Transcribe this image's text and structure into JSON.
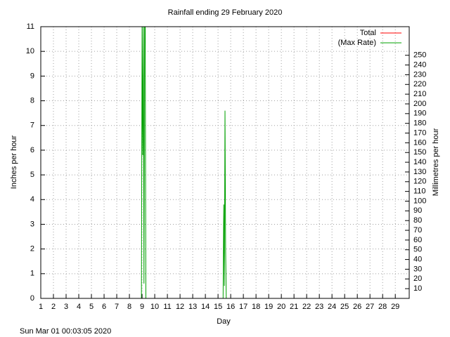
{
  "chart_data": {
    "type": "line",
    "title": "Rainfall ending 29 February 2020",
    "xlabel": "Day",
    "ylabel": "Inches per hour",
    "y2label": "Millimetres per hour",
    "footer": "Sun Mar 01 00:03:05 2020",
    "x": [
      8.95,
      9.0,
      9.05,
      9.1,
      9.15,
      9.2,
      9.25,
      9.3,
      15.4,
      15.45,
      15.5,
      15.55,
      15.6,
      15.65
    ],
    "series": [
      {
        "name": "Total",
        "color": "#ff0000",
        "values": [
          0,
          0,
          0,
          0,
          0,
          0,
          0,
          0,
          0,
          0,
          0,
          0,
          0,
          0
        ]
      },
      {
        "name": "(Max Rate)",
        "color": "#00a000",
        "values": [
          0,
          11,
          5.8,
          11,
          0.6,
          11,
          11,
          0,
          0,
          3.8,
          0.5,
          7.6,
          2.0,
          0
        ]
      }
    ],
    "xlim": [
      1,
      30.1
    ],
    "xticks": [
      1,
      2,
      3,
      4,
      5,
      6,
      7,
      8,
      9,
      10,
      11,
      12,
      13,
      14,
      15,
      16,
      17,
      18,
      19,
      20,
      21,
      22,
      23,
      24,
      25,
      26,
      27,
      28,
      29
    ],
    "ylim": [
      0,
      11
    ],
    "yticks": [
      0,
      1,
      2,
      3,
      4,
      5,
      6,
      7,
      8,
      9,
      10,
      11
    ],
    "y2lim": [
      0,
      279.4
    ],
    "y2ticks": [
      10,
      20,
      30,
      40,
      50,
      60,
      70,
      80,
      90,
      100,
      110,
      120,
      130,
      140,
      150,
      160,
      170,
      180,
      190,
      200,
      210,
      220,
      230,
      240,
      250
    ],
    "grid": true,
    "legend": "top-right"
  }
}
